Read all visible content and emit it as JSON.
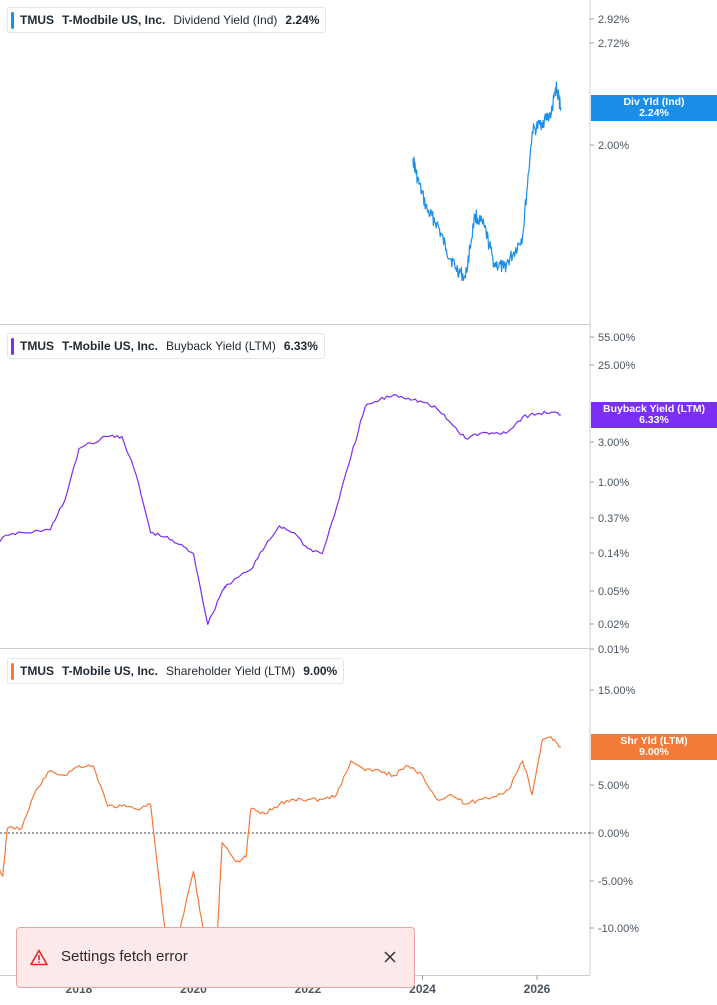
{
  "chart_data": [
    {
      "type": "line",
      "ticker": "TMUS",
      "company": "T-Modbile US, Inc.",
      "metric": "Dividend Yield (Ind)",
      "current_value": "2.24%",
      "badge_label": "Div Yld (Ind)",
      "badge_value": "2.24%",
      "color": "#1a8fe8",
      "scale": "log",
      "y_ticks": [
        "2.92%",
        "2.72%",
        "2.00%"
      ],
      "x": [
        "2023-11",
        "2023-12",
        "2024-02",
        "2024-04",
        "2024-06",
        "2024-08",
        "2024-10",
        "2024-12",
        "2025-02",
        "2025-04",
        "2025-06",
        "2025-08",
        "2025-10",
        "2025-12",
        "2026-02",
        "2026-04",
        "2026-05",
        "2026-06"
      ],
      "y": [
        1.92,
        1.8,
        1.64,
        1.58,
        1.46,
        1.38,
        1.34,
        1.62,
        1.56,
        1.4,
        1.38,
        1.44,
        1.52,
        2.08,
        2.14,
        2.2,
        2.38,
        2.24
      ]
    },
    {
      "type": "line",
      "ticker": "TMUS",
      "company": "T-Mobile US, Inc.",
      "metric": "Buyback Yield (LTM)",
      "current_value": "6.33%",
      "badge_label": "Buyback Yield (LTM)",
      "badge_value": "6.33%",
      "color": "#7b2ff2",
      "scale": "log",
      "y_ticks": [
        "55.00%",
        "25.00%",
        "3.00%",
        "1.00%",
        "0.37%",
        "0.14%",
        "0.05%",
        "0.02%",
        "0.01%"
      ],
      "x": [
        "2016-01",
        "2016-06",
        "2016-09",
        "2017-01",
        "2017-07",
        "2017-10",
        "2018-01",
        "2018-07",
        "2018-10",
        "2019-01",
        "2019-04",
        "2019-07",
        "2019-10",
        "2020-01",
        "2020-04",
        "2020-07",
        "2020-08",
        "2021-01",
        "2021-04",
        "2021-07",
        "2021-10",
        "2022-01",
        "2022-04",
        "2022-07",
        "2022-10",
        "2023-01",
        "2023-04",
        "2023-07",
        "2023-10",
        "2024-01",
        "2024-04",
        "2024-07",
        "2024-10",
        "2025-01",
        "2025-04",
        "2025-07",
        "2025-10",
        "2026-01",
        "2026-04",
        "2026-06"
      ],
      "y": [
        0.14,
        0.13,
        0.22,
        0.25,
        0.27,
        0.6,
        2.5,
        3.5,
        3.5,
        1.2,
        0.25,
        0.22,
        0.18,
        0.14,
        0.02,
        0.05,
        0.06,
        0.09,
        0.17,
        0.3,
        0.25,
        0.16,
        0.14,
        0.5,
        2.0,
        8.0,
        9.5,
        11.0,
        10.0,
        9.0,
        7.5,
        5.0,
        3.3,
        3.8,
        3.8,
        4.0,
        6.0,
        6.5,
        6.8,
        6.33
      ]
    },
    {
      "type": "line",
      "ticker": "TMUS",
      "company": "T-Mobile US, Inc.",
      "metric": "Shareholder Yield (LTM)",
      "current_value": "9.00%",
      "badge_label": "Shr Yld (LTM)",
      "badge_value": "9.00%",
      "color": "#f47a3a",
      "scale": "linear",
      "y_ticks": [
        "15.00%",
        "5.00%",
        "0.00%",
        "-5.00%",
        "-10.00%"
      ],
      "ylim": [
        -15,
        17
      ],
      "zero_line": "dotted",
      "x": [
        "2016-01",
        "2016-04",
        "2016-06",
        "2016-09",
        "2016-10",
        "2017-01",
        "2017-04",
        "2017-07",
        "2017-10",
        "2018-01",
        "2018-04",
        "2018-07",
        "2018-10",
        "2019-01",
        "2019-04",
        "2019-07",
        "2019-10",
        "2020-01",
        "2020-03",
        "2020-06",
        "2020-07",
        "2020-10",
        "2020-12",
        "2021-01",
        "2021-04",
        "2021-07",
        "2021-10",
        "2022-01",
        "2022-04",
        "2022-07",
        "2022-10",
        "2023-01",
        "2023-04",
        "2023-07",
        "2023-10",
        "2024-01",
        "2024-04",
        "2024-07",
        "2024-10",
        "2025-01",
        "2025-04",
        "2025-07",
        "2025-10",
        "2025-12",
        "2026-02",
        "2026-04",
        "2026-06"
      ],
      "y": [
        -11.5,
        -10.0,
        -1.0,
        -4.5,
        0.5,
        0.5,
        4.5,
        6.5,
        6.0,
        7.0,
        7.0,
        2.8,
        2.8,
        2.5,
        3.0,
        -10.0,
        -10.5,
        -4.0,
        -10.0,
        -10.5,
        -1.0,
        -3.0,
        -2.5,
        2.5,
        2.0,
        3.0,
        3.5,
        3.5,
        3.5,
        4.0,
        7.5,
        6.5,
        6.5,
        6.0,
        7.0,
        6.0,
        3.5,
        4.0,
        3.0,
        3.5,
        3.8,
        4.5,
        7.5,
        4.0,
        9.5,
        10.0,
        9.0
      ]
    }
  ],
  "x_axis": {
    "ticks": [
      "2018",
      "2020",
      "2022",
      "2024",
      "2026"
    ]
  },
  "toast": {
    "message": "Settings fetch error"
  }
}
